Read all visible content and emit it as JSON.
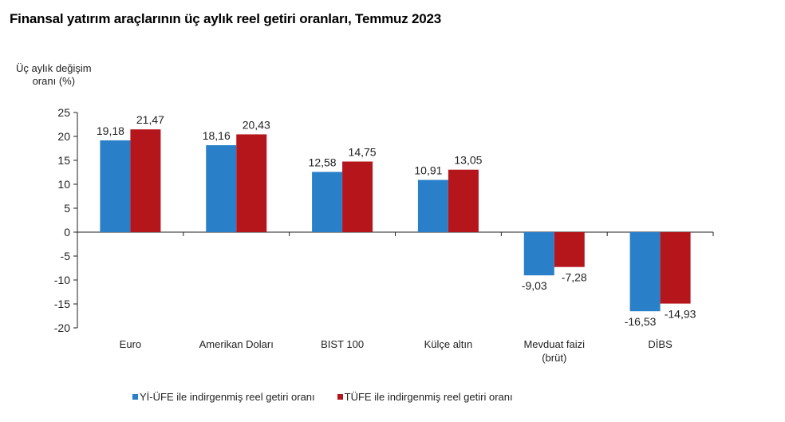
{
  "title": "Finansal yatırım araçlarının üç aylık reel getiri oranları, Temmuz 2023",
  "ylabel_line1": "Üç aylık değişim",
  "ylabel_line2": "oranı (%)",
  "legend": [
    {
      "label": "Yİ-ÜFE ile indirgenmiş reel getiri oranı",
      "color": "#2a7fc9"
    },
    {
      "label": "TÜFE ile indirgenmiş reel getiri oranı",
      "color": "#b5161b"
    }
  ],
  "chart_data": {
    "type": "bar",
    "title": "Finansal yatırım araçlarının üç aylık reel getiri oranları, Temmuz 2023",
    "xlabel": "",
    "ylabel": "Üç aylık değişim oranı (%)",
    "ylim": [
      -20,
      25
    ],
    "yticks": [
      25,
      20,
      15,
      10,
      5,
      0,
      -5,
      -10,
      -15,
      -20
    ],
    "grid": false,
    "legend_position": "bottom",
    "categories": [
      "Euro",
      "Amerikan Doları",
      "BIST 100",
      "Külçe altın",
      "Mevduat faizi (brüt)",
      "DİBS"
    ],
    "category_lines": [
      [
        "Euro"
      ],
      [
        "Amerikan Doları"
      ],
      [
        "BIST 100"
      ],
      [
        "Külçe altın"
      ],
      [
        "Mevduat faizi",
        "(brüt)"
      ],
      [
        "DİBS"
      ]
    ],
    "series": [
      {
        "name": "Yİ-ÜFE ile indirgenmiş reel getiri oranı",
        "color": "#2a7fc9",
        "values": [
          19.18,
          18.16,
          12.58,
          10.91,
          -9.03,
          -16.53
        ],
        "labels": [
          "19,18",
          "18,16",
          "12,58",
          "10,91",
          "-9,03",
          "-16,53"
        ]
      },
      {
        "name": "TÜFE ile indirgenmiş reel getiri oranı",
        "color": "#b5161b",
        "values": [
          21.47,
          20.43,
          14.75,
          13.05,
          -7.28,
          -14.93
        ],
        "labels": [
          "21,47",
          "20,43",
          "14,75",
          "13,05",
          "-7,28",
          "-14,93"
        ]
      }
    ]
  }
}
